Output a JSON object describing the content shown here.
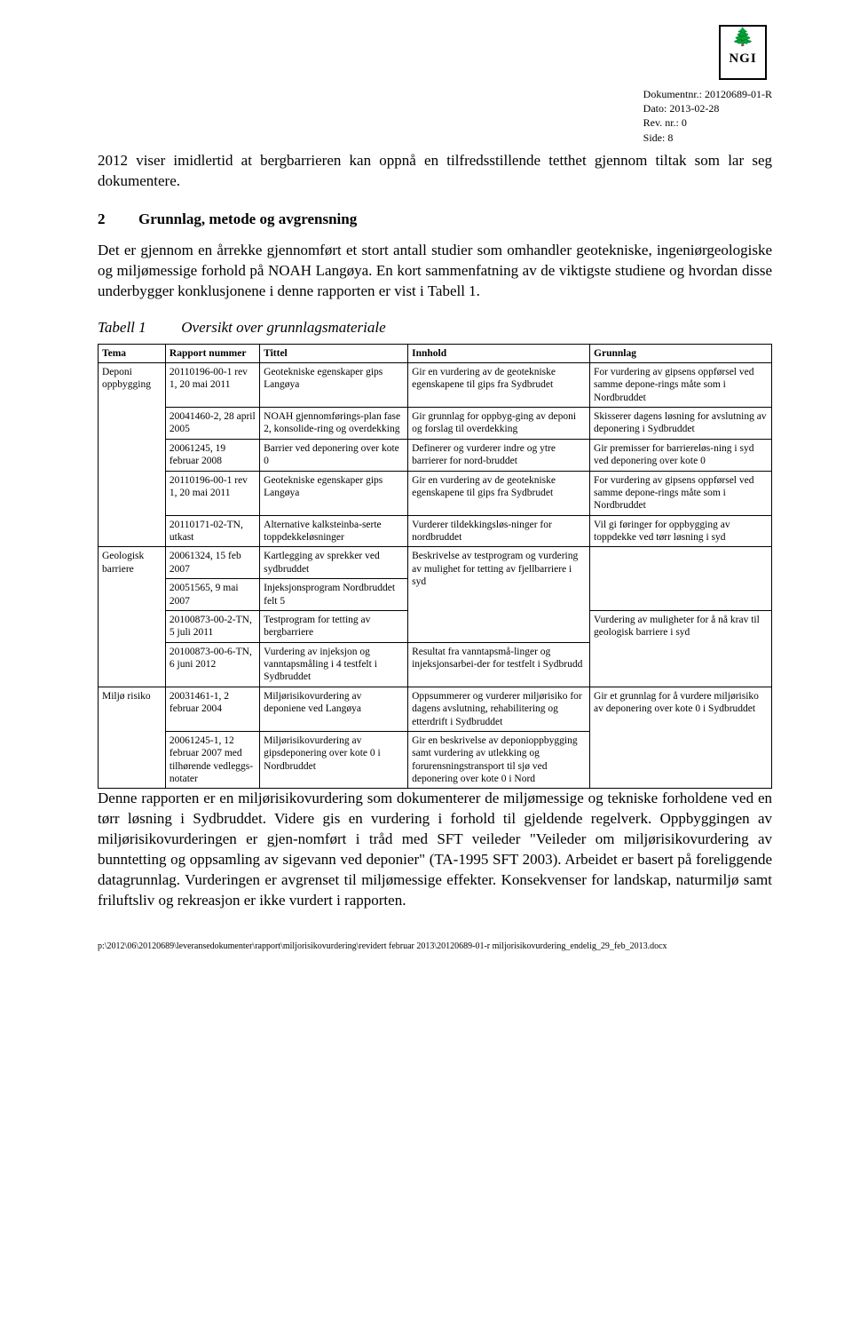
{
  "logo": {
    "glyph": "🌲",
    "text": "NGI"
  },
  "meta": {
    "docnr_label": "Dokumentnr.: ",
    "docnr": "20120689-01-R",
    "dato_label": "Dato: ",
    "dato": "2013-02-28",
    "rev_label": "Rev. nr.: ",
    "rev": "0",
    "side_label": "Side: ",
    "side": "8"
  },
  "para1": "2012 viser imidlertid at bergbarrieren kan oppnå en tilfredsstillende tetthet gjennom tiltak som lar seg dokumentere.",
  "section": {
    "num": "2",
    "title": "Grunnlag, metode og avgrensning"
  },
  "para2": "Det er gjennom en årrekke gjennomført et stort antall studier som omhandler geotekniske, ingeniørgeologiske og miljømessige forhold på NOAH Langøya. En kort sammenfatning av de viktigste studiene og hvordan disse underbygger konklusjonene i denne rapporten er vist i Tabell 1.",
  "tabcap": {
    "label": "Tabell 1",
    "title": "Oversikt over grunnlagsmateriale"
  },
  "thead": {
    "tema": "Tema",
    "rapport": "Rapport nummer",
    "tittel": "Tittel",
    "innhold": "Innhold",
    "grunnlag": "Grunnlag"
  },
  "rows": [
    {
      "tema": "Deponi oppbygging",
      "rapport": "20110196-00-1 rev 1, 20 mai 2011",
      "tittel": "Geotekniske egenskaper gips Langøya",
      "innhold": "Gir en vurdering av de geotekniske egenskapene til gips fra Sydbrudet",
      "grunnlag": "For vurdering av gipsens oppførsel ved samme depone-rings måte som i Nordbruddet"
    },
    {
      "tema": "",
      "rapport": "20041460-2, 28 april 2005",
      "tittel": "NOAH gjennomførings-plan fase 2, konsolide-ring og overdekking",
      "innhold": "Gir grunnlag for oppbyg-ging av deponi og forslag til overdekking",
      "grunnlag": "Skisserer dagens løsning for avslutning av deponering i Sydbruddet"
    },
    {
      "tema": "",
      "rapport": "20061245, 19 februar 2008",
      "tittel": "Barrier ved deponering over kote 0",
      "innhold": "Definerer og vurderer indre og ytre barrierer for nord-bruddet",
      "grunnlag": "Gir premisser for barriereløs-ning i syd ved deponering over kote 0"
    },
    {
      "tema": "",
      "rapport": "20110196-00-1 rev 1, 20 mai 2011",
      "tittel": "Geotekniske egenskaper gips Langøya",
      "innhold": "Gir en vurdering av de geotekniske egenskapene til gips fra Sydbrudet",
      "grunnlag": "For vurdering av gipsens oppførsel ved samme depone-rings måte som i Nordbruddet"
    },
    {
      "tema": "",
      "rapport": "20110171-02-TN, utkast",
      "tittel": "Alternative kalksteinba-serte toppdekkeløsninger",
      "innhold": "Vurderer tildekkingsløs-ninger for nordbruddet",
      "grunnlag": "Vil gi føringer for oppbygging av toppdekke ved tørr løsning i syd"
    },
    {
      "tema": "Geologisk barriere",
      "rapport": "20061324, 15 feb 2007",
      "tittel": "Kartlegging av sprekker ved sydbruddet",
      "innhold": "Beskrivelse av testprogram og vurdering av mulighet for tetting av fjellbarriere i syd",
      "grunnlag": ""
    },
    {
      "tema": "",
      "rapport": "20051565, 9 mai 2007",
      "tittel": "Injeksjonsprogram Nordbruddet felt 5",
      "innhold": "",
      "grunnlag": ""
    },
    {
      "tema": "",
      "rapport": "20100873-00-2-TN, 5 juli 2011",
      "tittel": "Testprogram for tetting av bergbarriere",
      "innhold": "",
      "grunnlag": "Vurdering av muligheter for å nå krav til geologisk barriere i syd"
    },
    {
      "tema": "",
      "rapport": "20100873-00-6-TN, 6 juni 2012",
      "tittel": "Vurdering av injeksjon og vanntapsmåling i 4 testfelt i Sydbruddet",
      "innhold": "Resultat fra vanntapsmå-linger og injeksjonsarbei-der for testfelt i Sydbrudd",
      "grunnlag": ""
    },
    {
      "tema": "Miljø risiko",
      "rapport": "20031461-1, 2 februar 2004",
      "tittel": "Miljørisikovurdering av deponiene ved Langøya",
      "innhold": "Oppsummerer og vurderer miljørisiko for dagens avslutning, rehabilitering og etterdrift i Sydbruddet",
      "grunnlag": ""
    },
    {
      "tema": "",
      "rapport": "20061245-1, 12 februar 2007 med tilhørende vedleggs-notater",
      "tittel": "Miljørisikovurdering av gipsdeponering over kote 0 i Nordbruddet",
      "innhold": "Gir en beskrivelse av deponioppbygging samt vurdering av utlekking og forurensningstransport til sjø ved deponering over kote 0 i Nord",
      "grunnlag": "Gir et grunnlag for å vurdere miljørisiko av deponering over kote 0 i Sydbruddet"
    }
  ],
  "para3": "Denne rapporten er en miljørisikovurdering som dokumenterer de miljømessige og tekniske forholdene ved en tørr løsning i Sydbruddet. Videre gis en vurdering i forhold til gjeldende regelverk. Oppbyggingen av miljørisikovurderingen er gjen-nomført i tråd med SFT veileder \"Veileder om miljørisikovurdering av bunntetting og oppsamling av sigevann ved deponier\" (TA-1995 SFT 2003). Arbeidet er basert på foreliggende datagrunnlag. Vurderingen er avgrenset til miljømessige effekter. Konsekvenser for landskap, naturmiljø samt friluftsliv og rekreasjon er ikke vurdert i rapporten.",
  "footer": "p:\\2012\\06\\20120689\\leveransedokumenter\\rapport\\miljorisikovurdering\\revidert februar 2013\\20120689-01-r miljorisikovurdering_endelig_29_feb_2013.docx"
}
